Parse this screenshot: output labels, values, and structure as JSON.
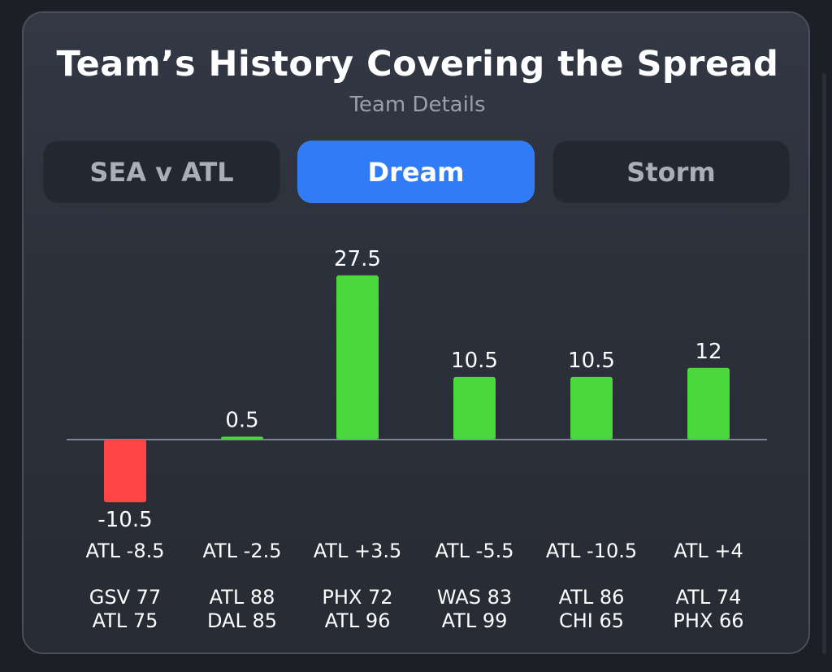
{
  "title": "Team’s History Covering the Spread",
  "subtitle": "Team Details",
  "tabs": [
    {
      "label": "SEA v ATL",
      "active": false
    },
    {
      "label": "Dream",
      "active": true
    },
    {
      "label": "Storm",
      "active": false
    }
  ],
  "colors": {
    "positive": "#4cd83b",
    "negative": "#ff4444",
    "active_tab": "#2f7cf6",
    "baseline": "#7d8593"
  },
  "chart_data": {
    "type": "bar",
    "categories": [
      "ATL -8.5",
      "ATL -2.5",
      "ATL +3.5",
      "ATL -5.5",
      "ATL -10.5",
      "ATL +4"
    ],
    "values": [
      -10.5,
      0.5,
      27.5,
      10.5,
      10.5,
      12
    ],
    "data_labels": [
      "-10.5",
      "0.5",
      "27.5",
      "10.5",
      "10.5",
      "12"
    ],
    "scores": [
      [
        "GSV 77",
        "ATL 75"
      ],
      [
        "ATL 88",
        "DAL 85"
      ],
      [
        "PHX 72",
        "ATL 96"
      ],
      [
        "WAS 83",
        "ATL 99"
      ],
      [
        "ATL 86",
        "CHI 65"
      ],
      [
        "ATL 74",
        "PHX 66"
      ]
    ],
    "title": "",
    "xlabel": "",
    "ylabel": "",
    "ylim": [
      -10.5,
      27.5
    ],
    "grid": false
  }
}
